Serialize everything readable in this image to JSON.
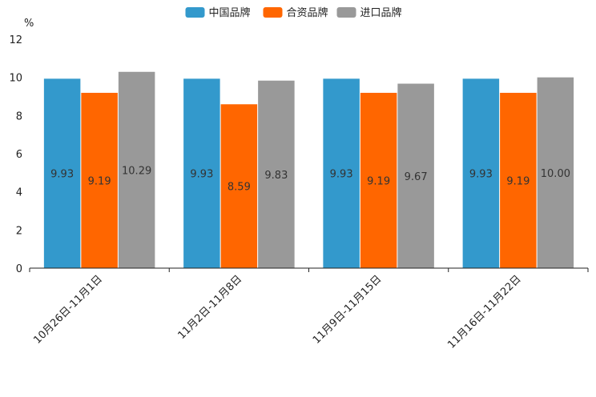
{
  "chart_data": {
    "type": "bar",
    "title": "",
    "xlabel": "",
    "ylabel": "%",
    "ylim": [
      0,
      12
    ],
    "yticks": [
      0,
      2,
      4,
      6,
      8,
      10,
      12
    ],
    "categories": [
      "10月26日-11月1日",
      "11月2日-11月8日",
      "11月9日-11月15日",
      "11月16日-11月22日"
    ],
    "series": [
      {
        "name": "中国品牌",
        "color": "#3399cc",
        "values": [
          9.93,
          9.93,
          9.93,
          9.93
        ],
        "labels": [
          "9.93",
          "9.93",
          "9.93",
          "9.93"
        ]
      },
      {
        "name": "合资品牌",
        "color": "#ff6600",
        "values": [
          9.19,
          8.59,
          9.19,
          9.19
        ],
        "labels": [
          "9.19",
          "8.59",
          "9.19",
          "9.19"
        ]
      },
      {
        "name": "进口品牌",
        "color": "#999999",
        "values": [
          10.29,
          9.83,
          9.67,
          10.0
        ],
        "labels": [
          "10.29",
          "9.83",
          "9.67",
          "10.00"
        ]
      }
    ],
    "legend_position": "top-center",
    "grid": false
  }
}
